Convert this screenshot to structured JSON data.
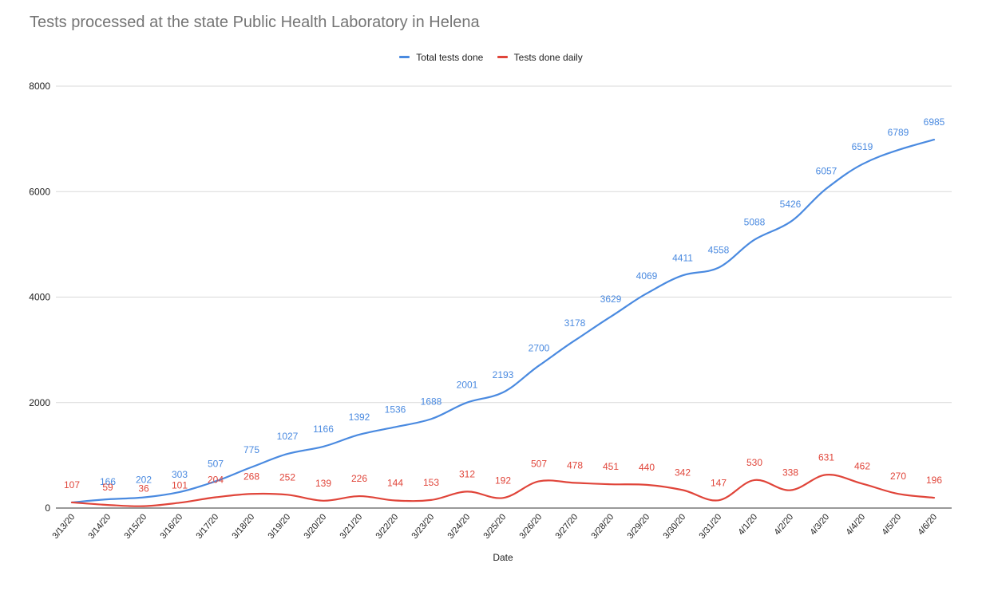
{
  "chart_data": {
    "type": "line",
    "title": "Tests processed at the state Public Health Laboratory in Helena",
    "xlabel": "Date",
    "ylabel": "",
    "ylim": [
      0,
      8000
    ],
    "yticks": [
      "0",
      "2000",
      "4000",
      "6000",
      "8000"
    ],
    "grid": true,
    "legend_position": "top",
    "categories": [
      "3/13/20",
      "3/14/20",
      "3/15/20",
      "3/16/20",
      "3/17/20",
      "3/18/20",
      "3/19/20",
      "3/20/20",
      "3/21/20",
      "3/22/20",
      "3/23/20",
      "3/24/20",
      "3/25/20",
      "3/26/20",
      "3/27/20",
      "3/28/20",
      "3/29/20",
      "3/30/20",
      "3/31/20",
      "4/1/20",
      "4/2/20",
      "4/3/20",
      "4/4/20",
      "4/5/20",
      "4/6/20"
    ],
    "series": [
      {
        "name": "Total tests done",
        "color": "#4a8ae0",
        "values": [
          107,
          166,
          202,
          303,
          507,
          775,
          1027,
          1166,
          1392,
          1536,
          1688,
          2001,
          2193,
          2700,
          3178,
          3629,
          4069,
          4411,
          4558,
          5088,
          5426,
          6057,
          6519,
          6789,
          6985
        ],
        "labels": [
          "",
          "166",
          "202",
          "303",
          "507",
          "775",
          "1027",
          "1166",
          "1392",
          "1536",
          "1688",
          "2001",
          "2193",
          "2700",
          "3178",
          "3629",
          "4069",
          "4411",
          "4558",
          "5088",
          "5426",
          "6057",
          "6519",
          "6789",
          "6985"
        ]
      },
      {
        "name": "Tests done daily",
        "color": "#e0453a",
        "values": [
          107,
          59,
          36,
          101,
          204,
          268,
          252,
          139,
          226,
          144,
          153,
          312,
          192,
          507,
          478,
          451,
          440,
          342,
          147,
          530,
          338,
          631,
          462,
          270,
          196
        ],
        "labels": [
          "107",
          "59",
          "36",
          "101",
          "204",
          "268",
          "252",
          "139",
          "226",
          "144",
          "153",
          "312",
          "192",
          "507",
          "478",
          "451",
          "440",
          "342",
          "147",
          "530",
          "338",
          "631",
          "462",
          "270",
          "196"
        ]
      }
    ]
  }
}
